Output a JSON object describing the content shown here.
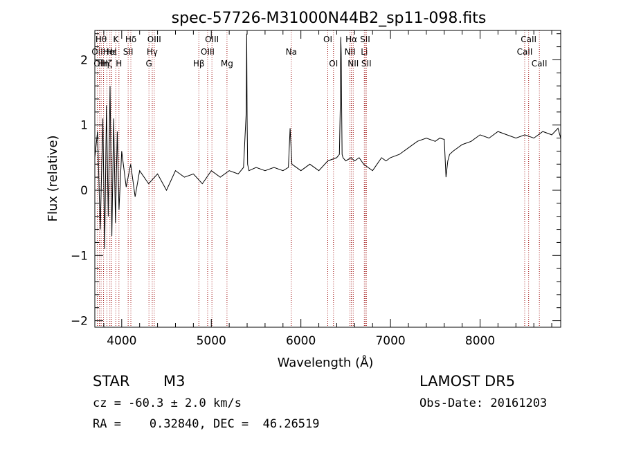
{
  "chart_data": {
    "type": "line",
    "title": "spec-57726-M31000N44B2_sp11-098.fits",
    "xlabel": "Wavelength (Å)",
    "ylabel": "Flux (relative)",
    "xlim": [
      3700,
      8900
    ],
    "ylim": [
      -2.1,
      2.45
    ],
    "x_ticks": [
      4000,
      5000,
      6000,
      7000,
      8000
    ],
    "y_ticks": [
      -2,
      -1,
      0,
      1,
      2
    ],
    "grid": false,
    "series": [
      {
        "wavelength": [
          3700,
          3730,
          3760,
          3790,
          3810,
          3830,
          3850,
          3870,
          3890,
          3910,
          3930,
          3950,
          3970,
          4000,
          4050,
          4100,
          4150,
          4200,
          4300,
          4400,
          4500,
          4600,
          4700,
          4800,
          4900,
          5000,
          5100,
          5200,
          5300,
          5360,
          5390,
          5395,
          5400,
          5405,
          5420,
          5500,
          5600,
          5700,
          5800,
          5860,
          5880,
          5900,
          6000,
          6100,
          6200,
          6300,
          6400,
          6430,
          6440,
          6445,
          6450,
          6455,
          6460,
          6470,
          6500,
          6560,
          6600,
          6650,
          6700,
          6750,
          6800,
          6850,
          6900,
          6950,
          7000,
          7100,
          7200,
          7300,
          7400,
          7500,
          7550,
          7600,
          7620,
          7640,
          7660,
          7700,
          7800,
          7900,
          8000,
          8100,
          8200,
          8300,
          8400,
          8500,
          8600,
          8700,
          8800,
          8870,
          8900
        ],
        "flux": [
          0.5,
          0.9,
          -0.6,
          1.1,
          -0.9,
          1.3,
          -0.4,
          1.6,
          -0.7,
          1.1,
          -0.5,
          0.9,
          -0.3,
          0.6,
          0.05,
          0.4,
          -0.1,
          0.3,
          0.1,
          0.25,
          0.0,
          0.3,
          0.2,
          0.25,
          0.1,
          0.3,
          0.2,
          0.3,
          0.25,
          0.35,
          1.2,
          2.4,
          1.1,
          0.4,
          0.3,
          0.35,
          0.3,
          0.35,
          0.3,
          0.35,
          0.95,
          0.4,
          0.3,
          0.4,
          0.3,
          0.45,
          0.5,
          0.55,
          1.3,
          2.35,
          2.1,
          1.2,
          0.55,
          0.5,
          0.45,
          0.5,
          0.45,
          0.5,
          0.4,
          0.35,
          0.3,
          0.4,
          0.5,
          0.45,
          0.5,
          0.55,
          0.65,
          0.75,
          0.8,
          0.75,
          0.8,
          0.78,
          0.2,
          0.45,
          0.55,
          0.6,
          0.7,
          0.75,
          0.85,
          0.8,
          0.9,
          0.85,
          0.8,
          0.85,
          0.8,
          0.9,
          0.85,
          0.95,
          0.8
        ]
      }
    ],
    "lines": [
      {
        "wavelength": 3727,
        "label": "OII",
        "row": 1
      },
      {
        "wavelength": 3750,
        "label": "OII",
        "row": 2
      },
      {
        "wavelength": 3770,
        "label": "Hθ",
        "row": 0
      },
      {
        "wavelength": 3797,
        "label": "Hη",
        "row": 2
      },
      {
        "wavelength": 3835,
        "label": "Hζ",
        "row": 2
      },
      {
        "wavelength": 3868,
        "label": "HeI",
        "row": 1
      },
      {
        "wavelength": 3889,
        "label": "Hε",
        "row": 1
      },
      {
        "wavelength": 3934,
        "label": "K",
        "row": 0
      },
      {
        "wavelength": 3969,
        "label": "H",
        "row": 2
      },
      {
        "wavelength": 4072,
        "label": "SII",
        "row": 1
      },
      {
        "wavelength": 4102,
        "label": "Hδ",
        "row": 0
      },
      {
        "wavelength": 4304,
        "label": "G",
        "row": 2
      },
      {
        "wavelength": 4341,
        "label": "Hγ",
        "row": 1
      },
      {
        "wavelength": 4363,
        "label": "OIII",
        "row": 0
      },
      {
        "wavelength": 4861,
        "label": "Hβ",
        "row": 2
      },
      {
        "wavelength": 4959,
        "label": "OIII",
        "row": 1
      },
      {
        "wavelength": 5007,
        "label": "OIII",
        "row": 0
      },
      {
        "wavelength": 5175,
        "label": "Mg",
        "row": 2
      },
      {
        "wavelength": 5893,
        "label": "Na",
        "row": 1
      },
      {
        "wavelength": 6300,
        "label": "OI",
        "row": 0
      },
      {
        "wavelength": 6364,
        "label": "OI",
        "row": 2
      },
      {
        "wavelength": 6548,
        "label": "NII",
        "row": 1
      },
      {
        "wavelength": 6563,
        "label": "Hα",
        "row": 0
      },
      {
        "wavelength": 6584,
        "label": "NII",
        "row": 2
      },
      {
        "wavelength": 6708,
        "label": "Li",
        "row": 1
      },
      {
        "wavelength": 6717,
        "label": "SII",
        "row": 0
      },
      {
        "wavelength": 6731,
        "label": "SII",
        "row": 2
      },
      {
        "wavelength": 8498,
        "label": "CaII",
        "row": 1
      },
      {
        "wavelength": 8542,
        "label": "CaII",
        "row": 0
      },
      {
        "wavelength": 8662,
        "label": "CaII",
        "row": 2
      }
    ]
  },
  "info": {
    "object_class": "STAR",
    "subclass": "M3",
    "survey": "LAMOST DR5",
    "cz": "cz = -60.3 ± 2.0 km/s",
    "obs_date": "Obs-Date: 20161203",
    "coords": "RA =    0.32840, DEC =  46.26519"
  },
  "colors": {
    "axis": "#000000",
    "spectrum": "#000000",
    "line_marker": "#a01010"
  }
}
